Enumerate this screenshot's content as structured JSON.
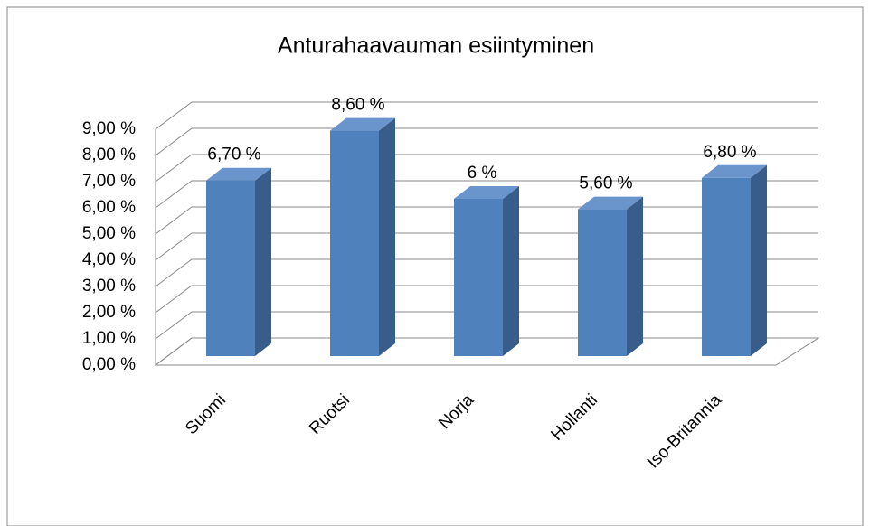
{
  "chart_data": {
    "type": "bar3d",
    "title": "Anturahaavauman esiintyminen",
    "categories": [
      "Suomi",
      "Ruotsi",
      "Norja",
      "Hollanti",
      "Iso-Britannia"
    ],
    "values": [
      6.7,
      8.6,
      6,
      5.6,
      6.8
    ],
    "value_labels": [
      "6,70 %",
      "8,60 %",
      "6 %",
      "5,60 %",
      "6,80 %"
    ],
    "color": "#4f81bd",
    "ylim": [
      0,
      9
    ],
    "yticks": [
      {
        "value": 0,
        "label": "0,00 %"
      },
      {
        "value": 1,
        "label": "1,00 %"
      },
      {
        "value": 2,
        "label": "2,00 %"
      },
      {
        "value": 3,
        "label": "3,00 %"
      },
      {
        "value": 4,
        "label": "4,00 %"
      },
      {
        "value": 5,
        "label": "5,00 %"
      },
      {
        "value": 6,
        "label": "6,00 %"
      },
      {
        "value": 7,
        "label": "7,00 %"
      },
      {
        "value": 8,
        "label": "8,00 %"
      },
      {
        "value": 9,
        "label": "9,00 %"
      }
    ],
    "grid": true
  }
}
